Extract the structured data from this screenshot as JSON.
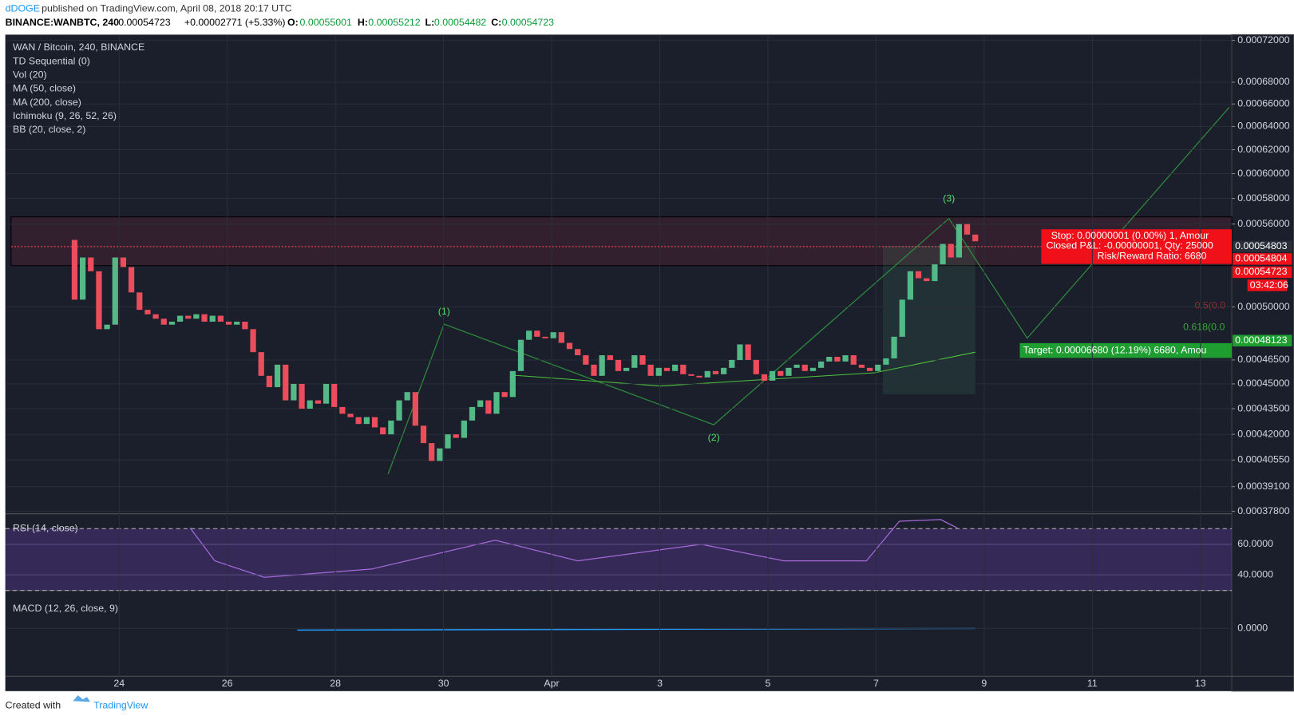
{
  "header": {
    "author": "dDOGE",
    "published": "published on TradingView.com, April 08, 2018 20:17 UTC",
    "symbol": "BINANCE:WANBTC, 240",
    "last": "0.00054723",
    "change": "+0.00002771 (+5.33%)",
    "o_label": "O:",
    "o": "0.00055001",
    "h_label": "H:",
    "h": "0.00055212",
    "l_label": "L:",
    "l": "0.00054482",
    "c_label": "C:",
    "c": "0.00054723"
  },
  "legend": [
    "WAN / Bitcoin, 240, BINANCE",
    "TD Sequential (0)",
    "Vol (20)",
    "MA (50, close)",
    "MA (200, close)",
    "Ichimoku (9, 26, 52, 26)",
    "BB (20, close, 2)"
  ],
  "chart_data": {
    "type": "candlestick",
    "log_scale": true,
    "up_color": "#53b987",
    "down_color": "#eb4d5c",
    "values": [
      0.000548,
      0.000505,
      0.000535,
      0.000525,
      0.000485,
      0.000488,
      0.000535,
      0.000528,
      0.00051,
      0.000498,
      0.000495,
      0.000492,
      0.000488,
      0.00049,
      0.000494,
      0.000492,
      0.000495,
      0.00049,
      0.000494,
      0.00049,
      0.000488,
      0.00049,
      0.000485,
      0.00047,
      0.000455,
      0.000448,
      0.000462,
      0.00044,
      0.00045,
      0.000435,
      0.00044,
      0.000438,
      0.00045,
      0.000436,
      0.000432,
      0.00043,
      0.000426,
      0.00043,
      0.000424,
      0.00042,
      0.000428,
      0.00044,
      0.000445,
      0.000425,
      0.000415,
      0.000405,
      0.000412,
      0.00042,
      0.000418,
      0.000428,
      0.000436,
      0.00044,
      0.000432,
      0.000445,
      0.000442,
      0.000458,
      0.000478,
      0.000484,
      0.00048,
      0.000479,
      0.000483,
      0.000476,
      0.000472,
      0.000468,
      0.000462,
      0.000455,
      0.000468,
      0.000465,
      0.000458,
      0.00046,
      0.000468,
      0.000462,
      0.000455,
      0.00046,
      0.000458,
      0.000462,
      0.000456,
      0.000455,
      0.000454,
      0.000458,
      0.000456,
      0.00046,
      0.000465,
      0.000475,
      0.000465,
      0.000456,
      0.000452,
      0.000458,
      0.000455,
      0.00046,
      0.000462,
      0.000458,
      0.00046,
      0.000464,
      0.000467,
      0.000464,
      0.000468,
      0.000462,
      0.00046,
      0.000458,
      0.000462,
      0.000466,
      0.00048,
      0.000505,
      0.000525,
      0.00052,
      0.000518,
      0.00053,
      0.000545,
      0.000535,
      0.00056,
      0.000552,
      0.000547
    ],
    "ylim": [
      0.000378,
      0.00072
    ],
    "yticks": [
      {
        "value": 0.00072,
        "label": "0.00072000"
      },
      {
        "value": 0.00068,
        "label": "0.00068000"
      },
      {
        "value": 0.00066,
        "label": "0.00066000"
      },
      {
        "value": 0.00064,
        "label": "0.00064000"
      },
      {
        "value": 0.00062,
        "label": "0.00062000"
      },
      {
        "value": 0.0006,
        "label": "0.00060000"
      },
      {
        "value": 0.00058,
        "label": "0.00058000"
      },
      {
        "value": 0.00056,
        "label": "0.00056000"
      },
      {
        "value": 0.0005,
        "label": "0.00050000"
      },
      {
        "value": 0.000465,
        "label": "0.00046500"
      },
      {
        "value": 0.00045,
        "label": "0.00045000"
      },
      {
        "value": 0.000435,
        "label": "0.00043500"
      },
      {
        "value": 0.00042,
        "label": "0.00042000"
      },
      {
        "value": 0.0004055,
        "label": "0.00040550"
      },
      {
        "value": 0.000391,
        "label": "0.00039100"
      },
      {
        "value": 0.000378,
        "label": "0.00037800"
      }
    ],
    "date_labels": [
      "24",
      "26",
      "28",
      "30",
      "Apr",
      "3",
      "5",
      "7",
      "9",
      "11",
      "13"
    ],
    "annotations": [
      "(1)",
      "(2)",
      "(3)"
    ],
    "price_labels": [
      "0.00054803",
      "0.00054804",
      "0.00054723",
      "03:42:06",
      "0.00048123"
    ],
    "stop_box": [
      "Stop: 0.00000001 (0.00%) 1, Amour",
      "Closed P&L: -0.00000001, Qty: 25000",
      "Risk/Reward Ratio: 6680"
    ],
    "target_box": "Target: 0.00006680 (12.19%) 6680, Amou",
    "fib": [
      "0.5(0.0",
      "0.618(0.0"
    ],
    "rsi": {
      "label": "RSI (14, close)",
      "yticks": [
        {
          "value": 60,
          "label": "60.0000"
        },
        {
          "value": 40,
          "label": "40.0000"
        }
      ]
    },
    "macd": {
      "label": "MACD (12, 26, close, 9)",
      "yticks": [
        {
          "value": 0,
          "label": "0.0000"
        }
      ]
    }
  },
  "footer": {
    "created": "Created with",
    "brand": "TradingView"
  }
}
